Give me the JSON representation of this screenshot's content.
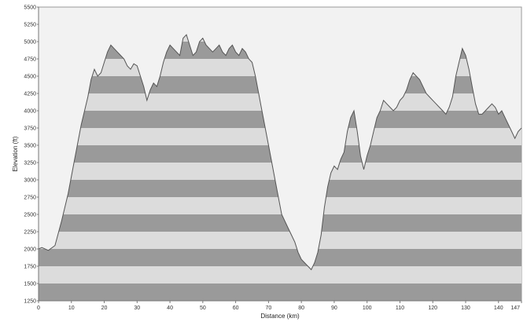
{
  "chart_data": {
    "type": "area",
    "xlabel": "Distance (km)",
    "ylabel": "Elevation (ft)",
    "xlim": [
      0,
      147
    ],
    "ylim": [
      1250,
      5500
    ],
    "xticks": [
      "0",
      "10",
      "20",
      "30",
      "40",
      "50",
      "60",
      "70",
      "80",
      "90",
      "100",
      "110",
      "120",
      "130",
      "140",
      "147"
    ],
    "yticks": [
      "1250",
      "1500",
      "1750",
      "2000",
      "2250",
      "2500",
      "2750",
      "3000",
      "3250",
      "3500",
      "3750",
      "4000",
      "4250",
      "4500",
      "4750",
      "5000",
      "5250",
      "5500"
    ],
    "band_colors": [
      "#9a9a9a",
      "#dcdcdc"
    ],
    "line_color": "#555555",
    "plot_background": "#f2f2f2",
    "grid": false,
    "series": [
      {
        "x": [
          0,
          1,
          3,
          5,
          7,
          9,
          11,
          13,
          15,
          16,
          17,
          18,
          19,
          20,
          21,
          22,
          23,
          24,
          25,
          26,
          27,
          28,
          29,
          30,
          31,
          32,
          33,
          34,
          35,
          36,
          37,
          38,
          39,
          40,
          41,
          42,
          43,
          44,
          45,
          46,
          47,
          48,
          49,
          50,
          51,
          52,
          53,
          54,
          55,
          56,
          57,
          58,
          59,
          60,
          61,
          62,
          63,
          64,
          65,
          66,
          68,
          70,
          72,
          74,
          76,
          77,
          78,
          79,
          80,
          81,
          82,
          83,
          84,
          85,
          86,
          87,
          88,
          89,
          90,
          91,
          92,
          93,
          94,
          95,
          96,
          97,
          98,
          99,
          100,
          101,
          102,
          103,
          104,
          105,
          106,
          107,
          108,
          109,
          110,
          111,
          112,
          113,
          114,
          115,
          116,
          117,
          118,
          119,
          120,
          121,
          122,
          123,
          124,
          125,
          126,
          127,
          128,
          129,
          130,
          131,
          132,
          133,
          134,
          135,
          136,
          137,
          138,
          139,
          140,
          141,
          142,
          143,
          144,
          145,
          146,
          147
        ],
        "values": [
          2000,
          2020,
          1980,
          2050,
          2400,
          2800,
          3300,
          3800,
          4200,
          4450,
          4600,
          4500,
          4550,
          4700,
          4850,
          4950,
          4900,
          4850,
          4800,
          4750,
          4650,
          4600,
          4680,
          4650,
          4500,
          4350,
          4150,
          4300,
          4400,
          4350,
          4500,
          4700,
          4850,
          4950,
          4900,
          4850,
          4800,
          5050,
          5100,
          4950,
          4800,
          4850,
          5000,
          5050,
          4950,
          4900,
          4850,
          4900,
          4950,
          4850,
          4800,
          4900,
          4950,
          4850,
          4800,
          4900,
          4850,
          4750,
          4700,
          4500,
          4000,
          3500,
          3000,
          2500,
          2300,
          2200,
          2100,
          1950,
          1850,
          1800,
          1750,
          1700,
          1800,
          1950,
          2200,
          2600,
          2900,
          3100,
          3200,
          3150,
          3300,
          3400,
          3700,
          3900,
          4000,
          3700,
          3350,
          3150,
          3350,
          3500,
          3700,
          3900,
          4000,
          4150,
          4100,
          4050,
          4000,
          4050,
          4150,
          4200,
          4300,
          4450,
          4550,
          4500,
          4450,
          4350,
          4250,
          4200,
          4150,
          4100,
          4050,
          4000,
          3950,
          4050,
          4200,
          4500,
          4700,
          4900,
          4800,
          4600,
          4350,
          4100,
          3950,
          3950,
          4000,
          4050,
          4100,
          4050,
          3950,
          4000,
          3900,
          3800,
          3700,
          3600,
          3700,
          3750
        ]
      }
    ]
  }
}
